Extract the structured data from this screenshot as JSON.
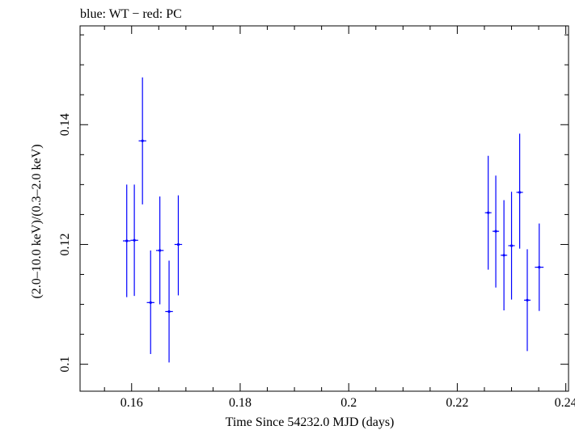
{
  "chart_data": {
    "type": "scatter",
    "title": "blue: WT − red: PC",
    "xlabel": "Time Since 54232.0 MJD (days)",
    "ylabel": "(2.0–10.0 keV)/(0.3–2.0 keV)",
    "xlim": [
      0.1505,
      0.2405
    ],
    "ylim": [
      0.0955,
      0.1565
    ],
    "x_ticks": [
      {
        "value": 0.16,
        "label": "0.16"
      },
      {
        "value": 0.18,
        "label": "0.18"
      },
      {
        "value": 0.2,
        "label": "0.2"
      },
      {
        "value": 0.22,
        "label": "0.22"
      },
      {
        "value": 0.24,
        "label": "0.24"
      }
    ],
    "y_ticks": [
      {
        "value": 0.1,
        "label": "0.1"
      },
      {
        "value": 0.12,
        "label": "0.12"
      },
      {
        "value": 0.14,
        "label": "0.14"
      }
    ],
    "x_minor_step": 0.005,
    "y_minor_step": 0.005,
    "grid": false,
    "series": [
      {
        "name": "WT",
        "color": "#0000ff",
        "points": [
          {
            "x": 0.1591,
            "xerr": 0.0007,
            "y": 0.1206,
            "ylo": 0.1112,
            "yhi": 0.13
          },
          {
            "x": 0.1605,
            "xerr": 0.0007,
            "y": 0.1207,
            "ylo": 0.1114,
            "yhi": 0.13
          },
          {
            "x": 0.162,
            "xerr": 0.0007,
            "y": 0.1373,
            "ylo": 0.1267,
            "yhi": 0.1479
          },
          {
            "x": 0.1635,
            "xerr": 0.0007,
            "y": 0.1103,
            "ylo": 0.1017,
            "yhi": 0.119
          },
          {
            "x": 0.1652,
            "xerr": 0.0007,
            "y": 0.119,
            "ylo": 0.11,
            "yhi": 0.128
          },
          {
            "x": 0.1669,
            "xerr": 0.0007,
            "y": 0.1088,
            "ylo": 0.1003,
            "yhi": 0.1173
          },
          {
            "x": 0.1686,
            "xerr": 0.0007,
            "y": 0.12,
            "ylo": 0.1115,
            "yhi": 0.1282
          },
          {
            "x": 0.2257,
            "xerr": 0.0006,
            "y": 0.1253,
            "ylo": 0.1158,
            "yhi": 0.1348
          },
          {
            "x": 0.2271,
            "xerr": 0.0006,
            "y": 0.1222,
            "ylo": 0.1128,
            "yhi": 0.1315
          },
          {
            "x": 0.2286,
            "xerr": 0.0006,
            "y": 0.1182,
            "ylo": 0.109,
            "yhi": 0.1274
          },
          {
            "x": 0.23,
            "xerr": 0.0006,
            "y": 0.1198,
            "ylo": 0.1108,
            "yhi": 0.1288
          },
          {
            "x": 0.2315,
            "xerr": 0.0006,
            "y": 0.1287,
            "ylo": 0.1193,
            "yhi": 0.1385
          },
          {
            "x": 0.2329,
            "xerr": 0.0006,
            "y": 0.1107,
            "ylo": 0.1022,
            "yhi": 0.1192
          },
          {
            "x": 0.2351,
            "xerr": 0.0008,
            "y": 0.1162,
            "ylo": 0.1089,
            "yhi": 0.1235
          }
        ]
      }
    ]
  }
}
